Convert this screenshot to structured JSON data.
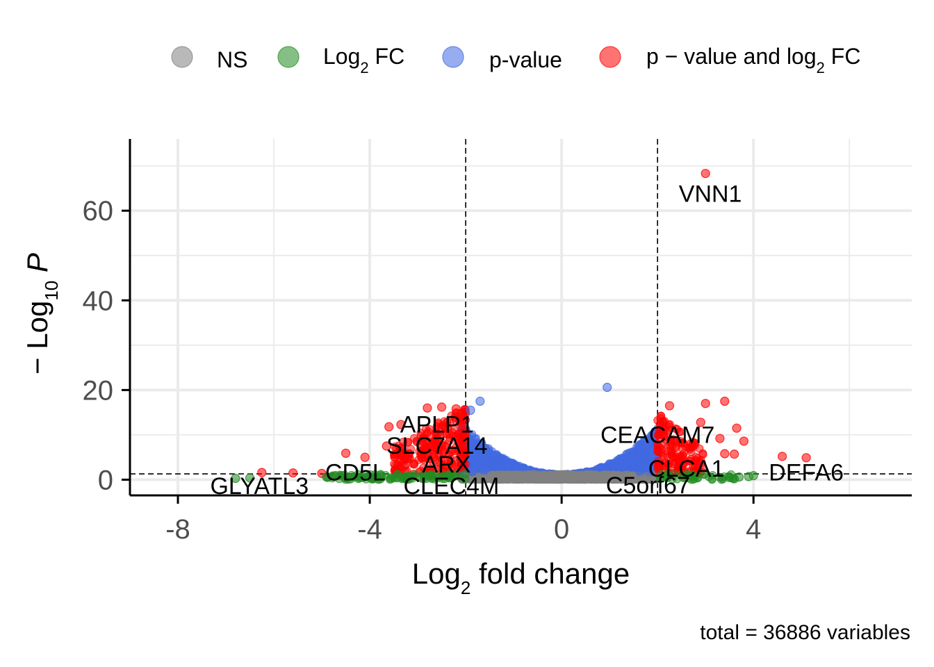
{
  "chart_data": {
    "type": "scatter",
    "subtype": "volcano",
    "xlabel": "Log2 fold change",
    "ylabel": "-Log10 P",
    "caption": "total = 36886 variables",
    "xlim": [
      -9,
      7.3
    ],
    "ylim": [
      -3.5,
      76
    ],
    "x_ticks": [
      -8,
      -4,
      0,
      4
    ],
    "x_tick_labels": [
      "-8",
      "-4",
      "0",
      "4"
    ],
    "y_ticks": [
      0,
      20,
      40,
      60
    ],
    "y_tick_labels": [
      "0",
      "20",
      "40",
      "60"
    ],
    "y_minor_ticks": [
      10,
      30,
      50,
      70
    ],
    "x_minor_ticks": [
      -6,
      -2,
      2,
      6
    ],
    "fc_cutoffs": [
      -2,
      2
    ],
    "p_cutoff": 1.3,
    "colors": {
      "NS": "#808080",
      "Log2 FC": "#228B22",
      "p-value": "#4169E1",
      "p - value and log2 FC": "#FF0000"
    },
    "legend": [
      {
        "key": "NS",
        "main": "NS",
        "sub": "",
        "tail": ""
      },
      {
        "key": "Log2 FC",
        "main": "Log",
        "sub": "2",
        "tail": " FC"
      },
      {
        "key": "p-value",
        "main": "p-value",
        "sub": "",
        "tail": ""
      },
      {
        "key": "p - value and log2 FC",
        "main": "p − value and log",
        "sub": "2",
        "tail": " FC"
      }
    ],
    "x_title": {
      "main": "Log",
      "sub": "2",
      "tail": " fold change"
    },
    "y_title": {
      "main": "− Log",
      "sub": "10",
      "tail": " P"
    },
    "labels": [
      {
        "gene": "VNN1",
        "x": 3.0,
        "y": 68.2,
        "lx": 3.1,
        "ly": 62
      },
      {
        "gene": "APLP1",
        "x": -2.5,
        "y": 12,
        "lx": -2.6,
        "ly": 10.5
      },
      {
        "gene": "SLC7A14",
        "x": -2.6,
        "y": 7,
        "lx": -2.6,
        "ly": 5.8
      },
      {
        "gene": "ARX",
        "x": -2.4,
        "y": 3,
        "lx": -2.4,
        "ly": 1.6
      },
      {
        "gene": "CD5L",
        "x": -4.3,
        "y": 1.5,
        "lx": -4.3,
        "ly": -0.2
      },
      {
        "gene": "CLEC4M",
        "x": -2.3,
        "y": -1,
        "lx": -2.3,
        "ly": -3.2
      },
      {
        "gene": "GLYATL3",
        "x": -6.3,
        "y": -1,
        "lx": -6.3,
        "ly": -3.2
      },
      {
        "gene": "CEACAM7",
        "x": 2.0,
        "y": 9,
        "lx": 2.0,
        "ly": 8.2
      },
      {
        "gene": "CLCA1",
        "x": 2.6,
        "y": 2,
        "lx": 2.6,
        "ly": 0.7
      },
      {
        "gene": "C5orf67",
        "x": 1.8,
        "y": -1,
        "lx": 1.8,
        "ly": -3.0
      },
      {
        "gene": "DEFA6",
        "x": 5.1,
        "y": 0.5,
        "lx": 5.1,
        "ly": -0.2
      }
    ],
    "points": [
      {
        "x": 3.0,
        "y": 68.3,
        "g": "p - value and log2 FC"
      },
      {
        "x": 0.95,
        "y": 20.6,
        "g": "p-value"
      },
      {
        "x": 3.4,
        "y": 17.5,
        "g": "p - value and log2 FC"
      },
      {
        "x": 3.0,
        "y": 17.0,
        "g": "p - value and log2 FC"
      },
      {
        "x": 2.25,
        "y": 16.5,
        "g": "p - value and log2 FC"
      },
      {
        "x": -1.9,
        "y": 15.5,
        "g": "p-value"
      },
      {
        "x": -1.7,
        "y": 17.5,
        "g": "p-value"
      },
      {
        "x": -2.8,
        "y": 16.0,
        "g": "p - value and log2 FC"
      },
      {
        "x": -2.5,
        "y": 16.2,
        "g": "p - value and log2 FC"
      },
      {
        "x": -2.2,
        "y": 15.8,
        "g": "p - value and log2 FC"
      },
      {
        "x": -3.6,
        "y": 11.8,
        "g": "p - value and log2 FC"
      },
      {
        "x": -3.35,
        "y": 12.3,
        "g": "p - value and log2 FC"
      },
      {
        "x": 3.65,
        "y": 11.5,
        "g": "p - value and log2 FC"
      },
      {
        "x": 2.9,
        "y": 12.8,
        "g": "p - value and log2 FC"
      },
      {
        "x": 3.8,
        "y": 8.6,
        "g": "p - value and log2 FC"
      },
      {
        "x": 3.3,
        "y": 9.2,
        "g": "p - value and log2 FC"
      },
      {
        "x": 4.6,
        "y": 5.2,
        "g": "p - value and log2 FC"
      },
      {
        "x": 5.1,
        "y": 4.9,
        "g": "p - value and log2 FC"
      },
      {
        "x": 3.4,
        "y": 5.8,
        "g": "p - value and log2 FC"
      },
      {
        "x": 3.6,
        "y": 5.7,
        "g": "p - value and log2 FC"
      },
      {
        "x": -4.5,
        "y": 5.9,
        "g": "p - value and log2 FC"
      },
      {
        "x": -4.1,
        "y": 5.0,
        "g": "p - value and log2 FC"
      },
      {
        "x": -3.65,
        "y": 7.5,
        "g": "p - value and log2 FC"
      },
      {
        "x": -6.25,
        "y": 1.6,
        "g": "p - value and log2 FC"
      },
      {
        "x": -5.6,
        "y": 1.5,
        "g": "p - value and log2 FC"
      },
      {
        "x": -5.0,
        "y": 1.4,
        "g": "p - value and log2 FC"
      },
      {
        "x": -6.8,
        "y": 0.3,
        "g": "Log2 FC"
      },
      {
        "x": -6.5,
        "y": 0.4,
        "g": "Log2 FC"
      },
      {
        "x": -4.9,
        "y": 0.6,
        "g": "Log2 FC"
      },
      {
        "x": -4.75,
        "y": 0.8,
        "g": "Log2 FC"
      },
      {
        "x": 3.9,
        "y": 0.7,
        "g": "Log2 FC"
      },
      {
        "x": 4.0,
        "y": 0.9,
        "g": "Log2 FC"
      },
      {
        "x": 3.6,
        "y": 0.2,
        "g": "Log2 FC"
      },
      {
        "x": 3.7,
        "y": 0.6,
        "g": "Log2 FC"
      }
    ]
  }
}
